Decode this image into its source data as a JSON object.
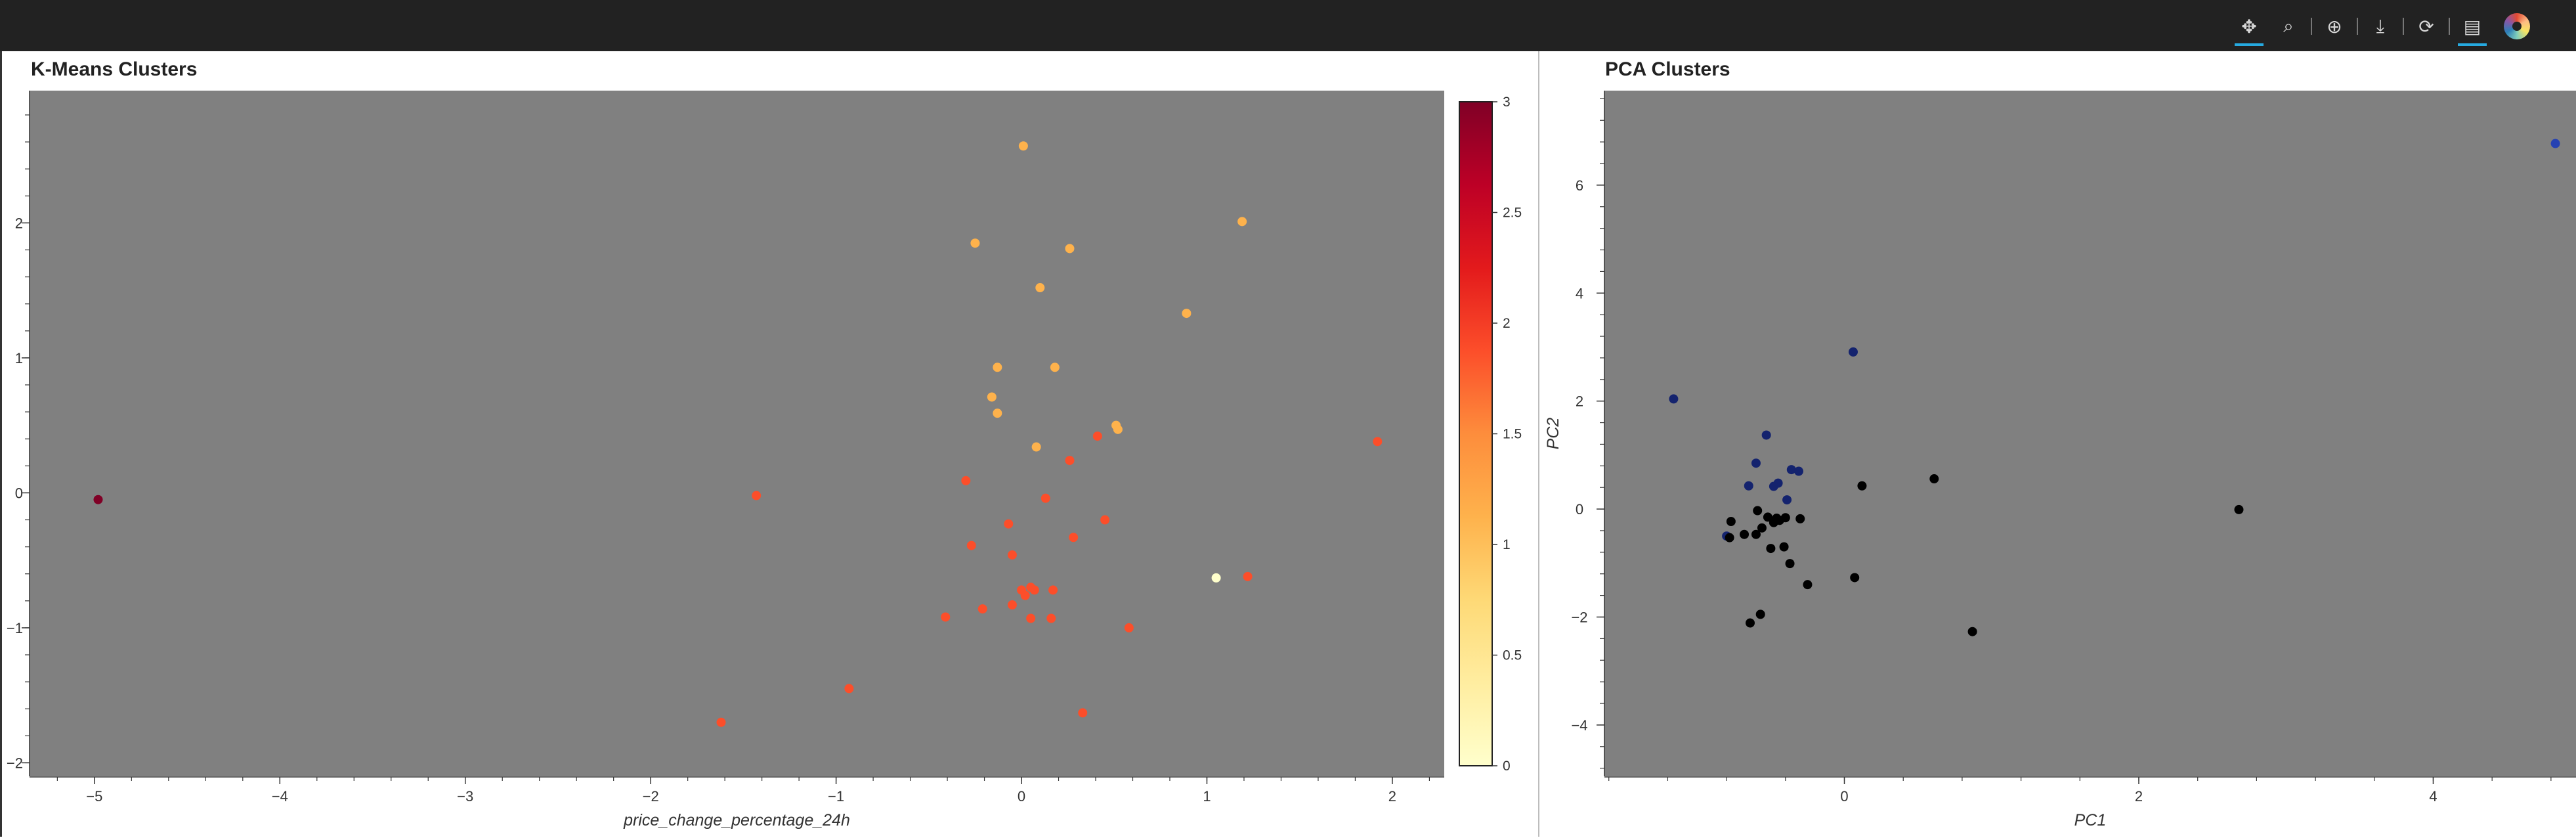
{
  "toolbar": {
    "tools": [
      {
        "name": "pan-tool",
        "glyph": "✥",
        "active": true
      },
      {
        "name": "box-zoom-tool",
        "glyph": "⌕",
        "active": false
      },
      {
        "name": "wheel-zoom-tool",
        "glyph": "⊕",
        "active": false
      },
      {
        "name": "save-tool",
        "glyph": "⤓",
        "active": false
      },
      {
        "name": "reset-tool",
        "glyph": "⟳",
        "active": false
      },
      {
        "name": "hover-tool",
        "glyph": "▤",
        "active": true
      }
    ]
  },
  "chart_data": [
    {
      "type": "scatter",
      "title": "K-Means Clusters",
      "xlabel": "price_change_percentage_24h",
      "ylabel": "",
      "xlim": [
        -5.35,
        2.28
      ],
      "ylim": [
        -2.1,
        2.98
      ],
      "xticks": [
        -5,
        -4,
        -3,
        -2,
        -1,
        0,
        1,
        2
      ],
      "yticks": [
        -2,
        -1,
        0,
        1,
        2
      ],
      "grid": false,
      "background": "#808080",
      "colorbar": {
        "min": 0,
        "max": 3,
        "ticks": [
          0,
          0.5,
          1,
          1.5,
          2,
          2.5,
          3
        ],
        "palette": [
          "#ffffcc",
          "#ffeda0",
          "#fed976",
          "#feb24c",
          "#fd8d3c",
          "#fc4e2a",
          "#e31a1c",
          "#bd0026",
          "#800026"
        ]
      },
      "points": [
        {
          "x": -4.98,
          "y": -0.05,
          "cluster": 3
        },
        {
          "x": -1.43,
          "y": -0.02,
          "cluster": 2
        },
        {
          "x": -1.62,
          "y": -1.7,
          "cluster": 2
        },
        {
          "x": -0.93,
          "y": -1.45,
          "cluster": 2
        },
        {
          "x": 0.01,
          "y": 2.57,
          "cluster": 1
        },
        {
          "x": -0.25,
          "y": 1.85,
          "cluster": 1
        },
        {
          "x": 0.26,
          "y": 1.81,
          "cluster": 1
        },
        {
          "x": 1.19,
          "y": 2.01,
          "cluster": 1
        },
        {
          "x": 0.1,
          "y": 1.52,
          "cluster": 1
        },
        {
          "x": 0.89,
          "y": 1.33,
          "cluster": 1
        },
        {
          "x": -0.13,
          "y": 0.93,
          "cluster": 1
        },
        {
          "x": 0.18,
          "y": 0.93,
          "cluster": 1
        },
        {
          "x": -0.16,
          "y": 0.71,
          "cluster": 1
        },
        {
          "x": -0.13,
          "y": 0.59,
          "cluster": 1
        },
        {
          "x": 0.51,
          "y": 0.5,
          "cluster": 1
        },
        {
          "x": 0.52,
          "y": 0.47,
          "cluster": 1
        },
        {
          "x": 0.08,
          "y": 0.34,
          "cluster": 1
        },
        {
          "x": 1.92,
          "y": 0.38,
          "cluster": 2
        },
        {
          "x": 0.41,
          "y": 0.42,
          "cluster": 2
        },
        {
          "x": 0.26,
          "y": 0.24,
          "cluster": 2
        },
        {
          "x": -0.3,
          "y": 0.09,
          "cluster": 2
        },
        {
          "x": 0.13,
          "y": -0.04,
          "cluster": 2
        },
        {
          "x": -0.07,
          "y": -0.23,
          "cluster": 2
        },
        {
          "x": 0.45,
          "y": -0.2,
          "cluster": 2
        },
        {
          "x": 0.28,
          "y": -0.33,
          "cluster": 2
        },
        {
          "x": -0.27,
          "y": -0.39,
          "cluster": 2
        },
        {
          "x": -0.05,
          "y": -0.46,
          "cluster": 2
        },
        {
          "x": 0.0,
          "y": -0.72,
          "cluster": 2
        },
        {
          "x": 0.05,
          "y": -0.7,
          "cluster": 2
        },
        {
          "x": 0.02,
          "y": -0.76,
          "cluster": 2
        },
        {
          "x": 0.07,
          "y": -0.72,
          "cluster": 2
        },
        {
          "x": 0.17,
          "y": -0.72,
          "cluster": 2
        },
        {
          "x": -0.05,
          "y": -0.83,
          "cluster": 2
        },
        {
          "x": -0.21,
          "y": -0.86,
          "cluster": 2
        },
        {
          "x": -0.41,
          "y": -0.92,
          "cluster": 2
        },
        {
          "x": 0.05,
          "y": -0.93,
          "cluster": 2
        },
        {
          "x": 0.16,
          "y": -0.93,
          "cluster": 2
        },
        {
          "x": 0.58,
          "y": -1.0,
          "cluster": 2
        },
        {
          "x": 1.05,
          "y": -0.63,
          "cluster": 0
        },
        {
          "x": 1.22,
          "y": -0.62,
          "cluster": 2
        },
        {
          "x": 0.33,
          "y": -1.63,
          "cluster": 2
        }
      ]
    },
    {
      "type": "scatter",
      "title": "PCA Clusters",
      "xlabel": "PC1",
      "ylabel": "PC2",
      "xlim": [
        -1.63,
        4.97
      ],
      "ylim": [
        -4.95,
        7.75
      ],
      "xticks": [
        0,
        2,
        4
      ],
      "yticks": [
        -4,
        -2,
        0,
        2,
        4,
        6
      ],
      "grid": false,
      "background": "#808080",
      "colors": {
        "0": "#000000",
        "1": "#14236e",
        "2": "#2541b2"
      },
      "points": [
        {
          "x": 4.83,
          "y": 6.77,
          "cluster": 2
        },
        {
          "x": -1.16,
          "y": 2.04,
          "cluster": 1
        },
        {
          "x": 0.06,
          "y": 2.91,
          "cluster": 1
        },
        {
          "x": -0.53,
          "y": 1.37,
          "cluster": 1
        },
        {
          "x": -0.6,
          "y": 0.85,
          "cluster": 1
        },
        {
          "x": -0.36,
          "y": 0.73,
          "cluster": 1
        },
        {
          "x": -0.31,
          "y": 0.7,
          "cluster": 1
        },
        {
          "x": -0.45,
          "y": 0.48,
          "cluster": 1
        },
        {
          "x": -0.48,
          "y": 0.42,
          "cluster": 1
        },
        {
          "x": -0.65,
          "y": 0.43,
          "cluster": 1
        },
        {
          "x": -0.39,
          "y": 0.17,
          "cluster": 1
        },
        {
          "x": -0.8,
          "y": -0.5,
          "cluster": 1
        },
        {
          "x": 0.61,
          "y": 0.56,
          "cluster": 0
        },
        {
          "x": 0.12,
          "y": 0.43,
          "cluster": 0
        },
        {
          "x": 2.68,
          "y": -0.01,
          "cluster": 0
        },
        {
          "x": -0.59,
          "y": -0.03,
          "cluster": 0
        },
        {
          "x": -0.52,
          "y": -0.15,
          "cluster": 0
        },
        {
          "x": -0.46,
          "y": -0.17,
          "cluster": 0
        },
        {
          "x": -0.4,
          "y": -0.16,
          "cluster": 0
        },
        {
          "x": -0.3,
          "y": -0.18,
          "cluster": 0
        },
        {
          "x": -0.48,
          "y": -0.25,
          "cluster": 0
        },
        {
          "x": -0.44,
          "y": -0.21,
          "cluster": 0
        },
        {
          "x": -0.77,
          "y": -0.23,
          "cluster": 0
        },
        {
          "x": -0.56,
          "y": -0.35,
          "cluster": 0
        },
        {
          "x": -0.68,
          "y": -0.47,
          "cluster": 0
        },
        {
          "x": -0.6,
          "y": -0.47,
          "cluster": 0
        },
        {
          "x": -0.78,
          "y": -0.53,
          "cluster": 0
        },
        {
          "x": -0.5,
          "y": -0.73,
          "cluster": 0
        },
        {
          "x": -0.41,
          "y": -0.7,
          "cluster": 0
        },
        {
          "x": -0.37,
          "y": -1.01,
          "cluster": 0
        },
        {
          "x": -0.25,
          "y": -1.4,
          "cluster": 0
        },
        {
          "x": 0.07,
          "y": -1.27,
          "cluster": 0
        },
        {
          "x": -0.57,
          "y": -1.95,
          "cluster": 0
        },
        {
          "x": -0.64,
          "y": -2.11,
          "cluster": 0
        },
        {
          "x": 0.87,
          "y": -2.27,
          "cluster": 0
        }
      ]
    }
  ]
}
